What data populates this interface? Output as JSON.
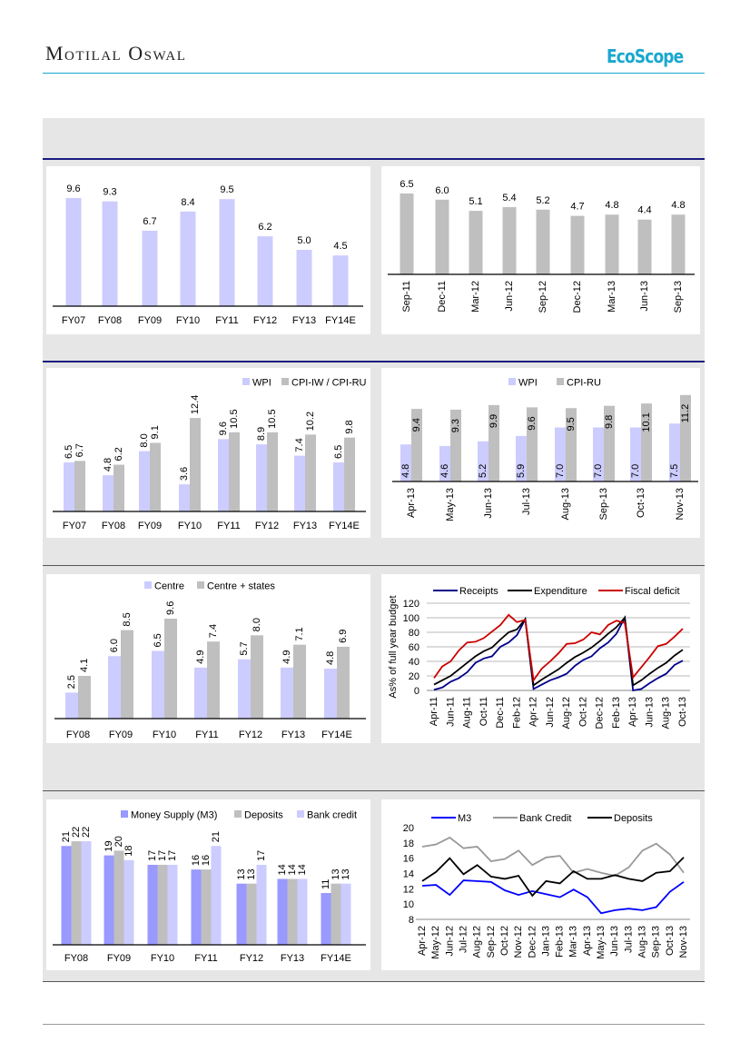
{
  "header": {
    "brand": "Motilal Oswal",
    "logo_text": "EcoScope"
  },
  "colors": {
    "accent": "#1aa6cf",
    "section_rule": "#1a1a80",
    "band": "#e6e6e6"
  },
  "chart_data": [
    {
      "type": "bar",
      "categories": [
        "FY07",
        "FY08",
        "FY09",
        "FY10",
        "FY11",
        "FY12",
        "FY13",
        "FY14E"
      ],
      "series": [
        {
          "values": [
            9.6,
            9.3,
            6.7,
            8.4,
            9.5,
            6.2,
            5.0,
            4.5
          ],
          "color": "#ccccff"
        }
      ],
      "data_labels": true
    },
    {
      "type": "bar",
      "categories": [
        "Sep-11",
        "Dec-11",
        "Mar-12",
        "Jun-12",
        "Sep-12",
        "Dec-12",
        "Mar-13",
        "Jun-13",
        "Sep-13"
      ],
      "series": [
        {
          "values": [
            6.5,
            6.0,
            5.1,
            5.4,
            5.2,
            4.7,
            4.8,
            4.4,
            4.8
          ],
          "color": "#bfbfbf"
        }
      ],
      "data_labels": true
    },
    {
      "type": "bar",
      "categories": [
        "FY07",
        "FY08",
        "FY09",
        "FY10",
        "FY11",
        "FY12",
        "FY13",
        "FY14E"
      ],
      "series": [
        {
          "name": "WPI",
          "values": [
            6.5,
            4.8,
            8.0,
            3.6,
            9.6,
            8.9,
            7.4,
            6.5
          ],
          "color": "#ccccff"
        },
        {
          "name": "CPI-IW / CPI-RU",
          "values": [
            6.7,
            6.2,
            9.1,
            12.4,
            10.5,
            10.5,
            10.2,
            9.8
          ],
          "color": "#bfbfbf"
        }
      ],
      "legend": "top-right",
      "data_labels": true
    },
    {
      "type": "bar",
      "categories": [
        "Apr-13",
        "May-13",
        "Jun-13",
        "Jul-13",
        "Aug-13",
        "Sep-13",
        "Oct-13",
        "Nov-13"
      ],
      "series": [
        {
          "name": "WPI",
          "values": [
            4.8,
            4.6,
            5.2,
            5.9,
            7.0,
            7.0,
            7.0,
            7.5
          ],
          "color": "#ccccff"
        },
        {
          "name": "CPI-RU",
          "values": [
            9.4,
            9.3,
            9.9,
            9.6,
            9.5,
            9.8,
            10.1,
            11.2
          ],
          "color": "#bfbfbf"
        }
      ],
      "legend": "top",
      "data_labels": true
    },
    {
      "type": "bar",
      "categories": [
        "FY08",
        "FY09",
        "FY10",
        "FY11",
        "FY12",
        "FY13",
        "FY14E"
      ],
      "series": [
        {
          "name": "Centre",
          "values": [
            2.5,
            6.0,
            6.5,
            4.9,
            5.7,
            4.9,
            4.8
          ],
          "color": "#ccccff"
        },
        {
          "name": "Centre + states",
          "values": [
            4.1,
            8.5,
            9.6,
            7.4,
            8.0,
            7.1,
            6.9
          ],
          "color": "#bfbfbf"
        }
      ],
      "legend": "top",
      "data_labels": true
    },
    {
      "type": "line",
      "x": [
        "Apr-11",
        "May-11",
        "Jun-11",
        "Jul-11",
        "Aug-11",
        "Sep-11",
        "Oct-11",
        "Nov-11",
        "Dec-11",
        "Jan-12",
        "Feb-12",
        "Mar-12",
        "Apr-12",
        "May-12",
        "Jun-12",
        "Jul-12",
        "Aug-12",
        "Sep-12",
        "Oct-12",
        "Nov-12",
        "Dec-12",
        "Jan-13",
        "Feb-13",
        "Mar-13",
        "Apr-13",
        "May-13",
        "Jun-13",
        "Jul-13",
        "Aug-13",
        "Sep-13",
        "Oct-13"
      ],
      "series": [
        {
          "name": "Receipts",
          "color": "#00008b",
          "values": [
            1,
            4,
            12,
            17,
            25,
            38,
            44,
            47,
            60,
            66,
            76,
            98,
            2,
            8,
            14,
            18,
            23,
            34,
            42,
            47,
            58,
            66,
            78,
            100,
            0,
            2,
            10,
            17,
            23,
            35,
            41
          ]
        },
        {
          "name": "Expenditure",
          "color": "#000000",
          "values": [
            8,
            14,
            20,
            29,
            38,
            47,
            54,
            59,
            70,
            80,
            84,
            98,
            7,
            15,
            22,
            29,
            38,
            46,
            52,
            59,
            68,
            78,
            87,
            100,
            7,
            14,
            23,
            31,
            38,
            48,
            56
          ]
        },
        {
          "name": "Fiscal deficit",
          "color": "#cc0000",
          "values": [
            17,
            33,
            40,
            55,
            66,
            67,
            72,
            81,
            90,
            104,
            94,
            97,
            14,
            30,
            40,
            51,
            64,
            65,
            70,
            80,
            77,
            90,
            96,
            93,
            18,
            32,
            46,
            61,
            64,
            74,
            85
          ]
        }
      ],
      "ylabel": "As% of full year budget",
      "ylim": [
        0,
        120
      ],
      "yticks": [
        0,
        20,
        40,
        60,
        80,
        100,
        120
      ],
      "grid": true,
      "legend": "top"
    },
    {
      "type": "bar",
      "categories": [
        "FY08",
        "FY09",
        "FY10",
        "FY11",
        "FY12",
        "FY13",
        "FY14E"
      ],
      "series": [
        {
          "name": "Money Supply (M3)",
          "values": [
            21,
            19,
            17,
            16,
            13,
            14,
            11
          ],
          "color": "#9999ff"
        },
        {
          "name": "Deposits",
          "values": [
            22,
            20,
            17,
            16,
            13,
            14,
            13
          ],
          "color": "#bfbfbf"
        },
        {
          "name": "Bank credit",
          "values": [
            22,
            18,
            17,
            21,
            17,
            14,
            13
          ],
          "color": "#ccccff"
        }
      ],
      "legend": "top",
      "data_labels": true
    },
    {
      "type": "line",
      "x": [
        "Apr-12",
        "May-12",
        "Jun-12",
        "Jul-12",
        "Aug-12",
        "Sep-12",
        "Oct-12",
        "Nov-12",
        "Dec-12",
        "Jan-13",
        "Feb-13",
        "Mar-13",
        "Apr-13",
        "May-13",
        "Jun-13",
        "Jul-13",
        "Aug-13",
        "Sep-13",
        "Oct-13",
        "Nov-13"
      ],
      "series": [
        {
          "name": "M3",
          "color": "#0000ff",
          "values": [
            12.4,
            12.5,
            11.2,
            13.1,
            13.0,
            12.9,
            11.8,
            11.2,
            11.7,
            11.3,
            10.9,
            11.9,
            10.9,
            8.8,
            9.2,
            9.4,
            9.2,
            9.6,
            11.6,
            12.9
          ]
        },
        {
          "name": "Bank Credit",
          "color": "#999999",
          "values": [
            17.5,
            17.8,
            18.7,
            17.3,
            17.5,
            15.6,
            15.9,
            17.0,
            15.1,
            16.1,
            16.3,
            14.1,
            14.6,
            14.1,
            13.7,
            14.8,
            17.0,
            17.9,
            16.5,
            14.1
          ]
        },
        {
          "name": "Deposits",
          "color": "#000000",
          "values": [
            13.0,
            14.2,
            16.0,
            13.9,
            15.1,
            13.6,
            13.3,
            13.7,
            11.1,
            13.0,
            12.7,
            14.3,
            13.3,
            13.3,
            13.8,
            13.3,
            13.0,
            14.1,
            14.3,
            16.1
          ]
        }
      ],
      "ylim": [
        8,
        20
      ],
      "yticks": [
        8,
        10,
        12,
        14,
        16,
        18,
        20
      ],
      "grid": false,
      "legend": "top"
    }
  ]
}
